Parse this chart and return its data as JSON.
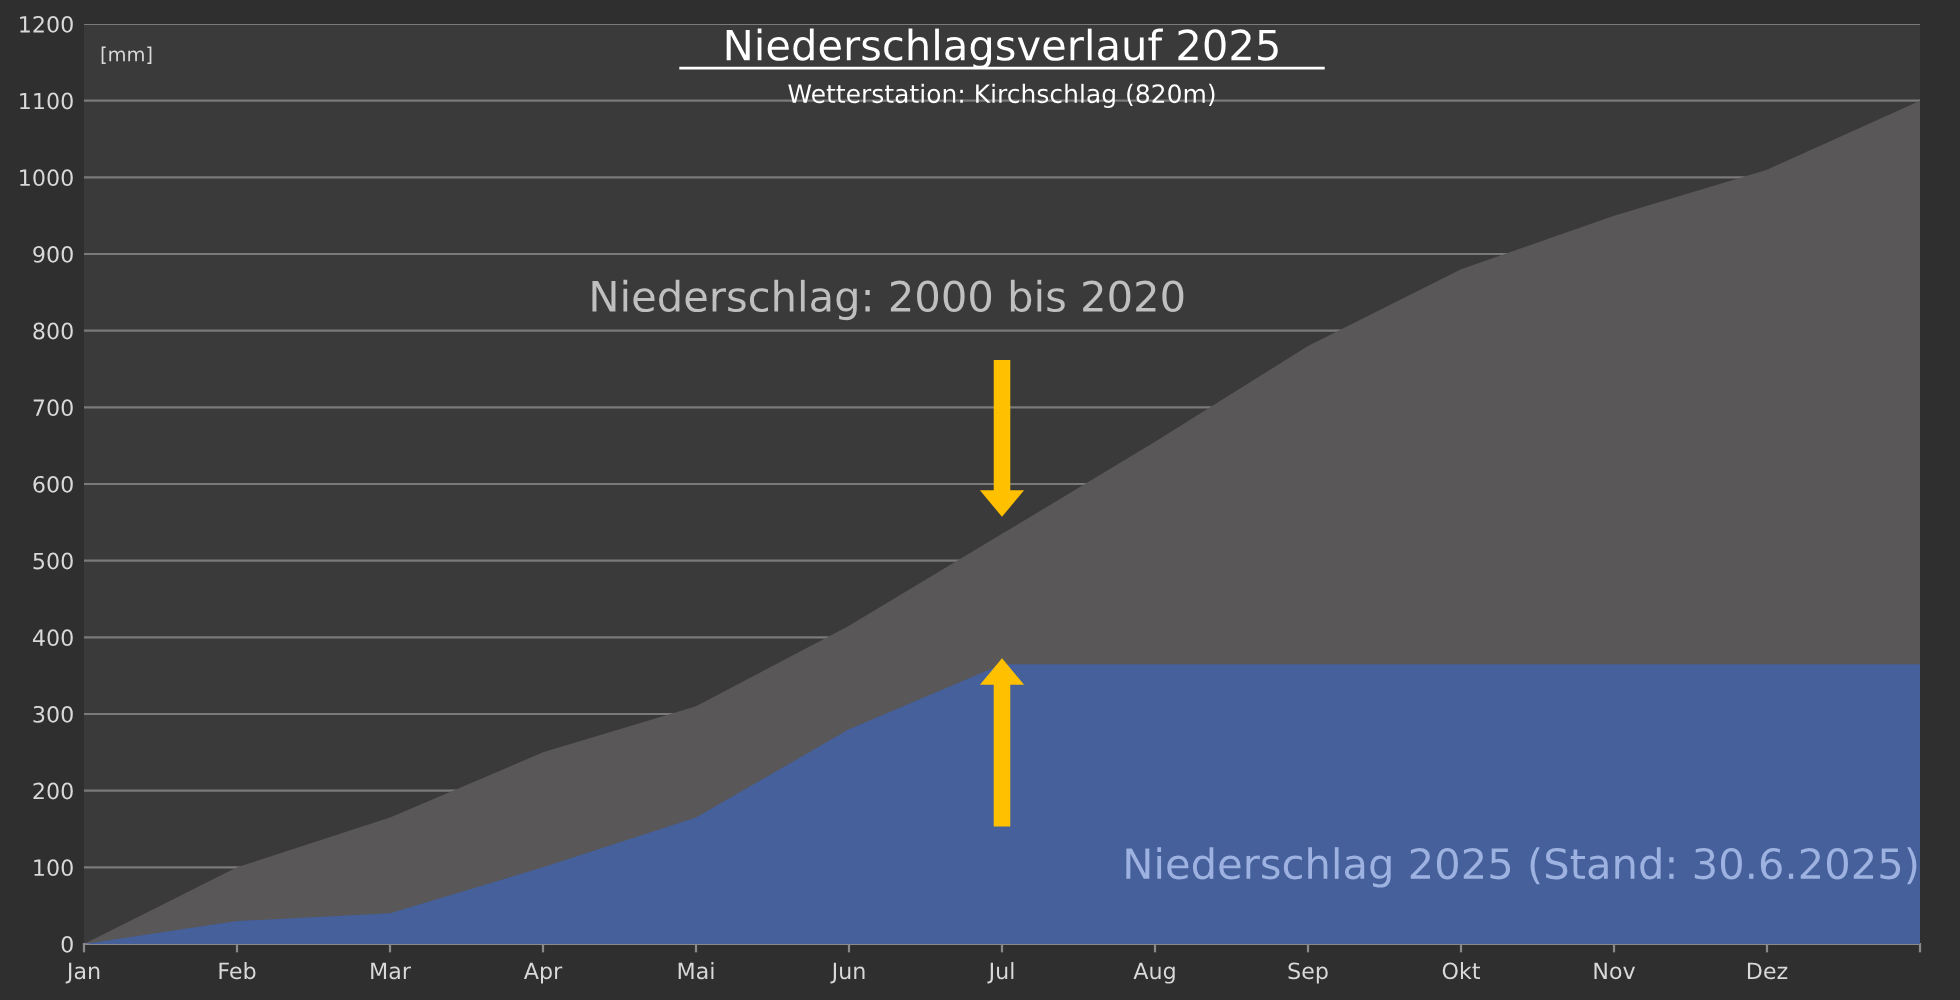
{
  "chart_data": {
    "type": "area",
    "title": "Niederschlagsverlauf 2025",
    "subtitle": "Wetterstation: Kirchschlag (820m)",
    "ylabel": "[mm]",
    "categories": [
      "Jan",
      "Feb",
      "Mar",
      "Apr",
      "Mai",
      "Jun",
      "Jul",
      "Aug",
      "Sep",
      "Okt",
      "Nov",
      "Dez",
      null
    ],
    "series": [
      {
        "name": "Niederschlag: 2000 bis 2020",
        "color": "#595757",
        "values": [
          0,
          100,
          165,
          250,
          310,
          415,
          535,
          655,
          780,
          880,
          950,
          1010,
          1100
        ]
      },
      {
        "name": "Niederschlag 2025 (Stand: 30.6.2025)",
        "color": "#45609a",
        "values": [
          0,
          30,
          40,
          100,
          165,
          280,
          365,
          365,
          365,
          365,
          365,
          365,
          365
        ]
      }
    ],
    "ylim": [
      0,
      1200
    ],
    "yticks": [
      0,
      100,
      200,
      300,
      400,
      500,
      600,
      700,
      800,
      900,
      1000,
      1100,
      1200
    ],
    "grid": "y",
    "legend": false
  }
}
